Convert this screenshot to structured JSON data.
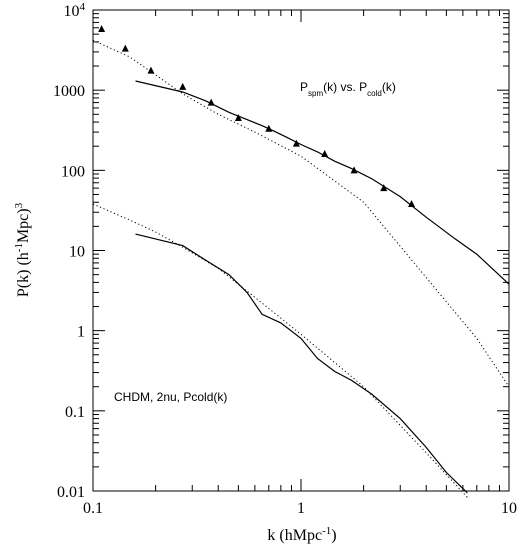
{
  "chart_data": {
    "type": "line",
    "title": "",
    "xlabel": "k (hMpc^-1)",
    "ylabel": "P(k) (h^-1Mpc)^3",
    "x_scale": "log",
    "y_scale": "log",
    "xlim": [
      0.1,
      10
    ],
    "ylim": [
      0.01,
      10000
    ],
    "x_ticks": [
      {
        "value": 0.1,
        "label": "0.1"
      },
      {
        "value": 1,
        "label": "1"
      },
      {
        "value": 10,
        "label": "10"
      }
    ],
    "y_ticks": [
      {
        "value": 0.01,
        "label": "0.01"
      },
      {
        "value": 0.1,
        "label": "0.1"
      },
      {
        "value": 1,
        "label": "1"
      },
      {
        "value": 10,
        "label": "10"
      },
      {
        "value": 100,
        "label": "100"
      },
      {
        "value": 1000,
        "label": "1000"
      },
      {
        "value": 10000,
        "label": "10^4"
      }
    ],
    "grid": false,
    "annotations": [
      {
        "text": "P_spm(k) vs. P_cold(k)",
        "x": 1.8,
        "y": 1000
      },
      {
        "text": "CHDM, 2nu, Pcold(k)",
        "x": 0.135,
        "y": 0.1
      }
    ],
    "series": [
      {
        "style": "solid",
        "x": [
          0.16,
          0.27,
          0.35,
          0.45,
          0.55,
          0.65,
          0.72,
          0.85,
          1.0,
          1.2,
          1.45,
          1.75,
          2.2,
          3.0,
          4.0,
          5.5,
          7.0,
          10.0
        ],
        "y": [
          1300,
          950,
          730,
          530,
          430,
          360,
          320,
          260,
          210,
          170,
          130,
          105,
          78,
          47,
          26,
          14,
          9,
          3.8
        ]
      },
      {
        "style": "solid",
        "x": [
          0.16,
          0.27,
          0.35,
          0.45,
          0.55,
          0.65,
          0.8,
          1.0,
          1.2,
          1.45,
          1.75,
          2.2,
          3.0,
          4.0,
          5.0,
          6.3
        ],
        "y": [
          16,
          11.5,
          7.5,
          5.0,
          3.0,
          1.6,
          1.25,
          0.8,
          0.45,
          0.31,
          0.24,
          0.16,
          0.08,
          0.035,
          0.017,
          0.0095
        ]
      },
      {
        "style": "dotted",
        "x": [
          0.1,
          0.15,
          0.2,
          0.27,
          0.4,
          0.6,
          1.0,
          2.0,
          4.0,
          7.0,
          10.0
        ],
        "y": [
          4200,
          2600,
          1550,
          900,
          500,
          300,
          150,
          40,
          4.6,
          0.8,
          0.2
        ]
      },
      {
        "style": "dotted",
        "x": [
          0.1,
          0.15,
          0.2,
          0.27,
          0.4,
          0.6,
          1.0,
          2.0,
          4.0,
          6.4
        ],
        "y": [
          38,
          24,
          17,
          11,
          6.0,
          2.6,
          0.9,
          0.2,
          0.03,
          0.008
        ]
      },
      {
        "style": "markers",
        "marker": "triangle",
        "x": [
          0.11,
          0.143,
          0.19,
          0.27,
          0.37,
          0.5,
          0.7,
          0.95,
          1.3,
          1.8,
          2.5,
          3.4
        ],
        "y": [
          5800,
          3300,
          1750,
          1100,
          700,
          450,
          330,
          215,
          160,
          100,
          60,
          38
        ]
      }
    ]
  }
}
